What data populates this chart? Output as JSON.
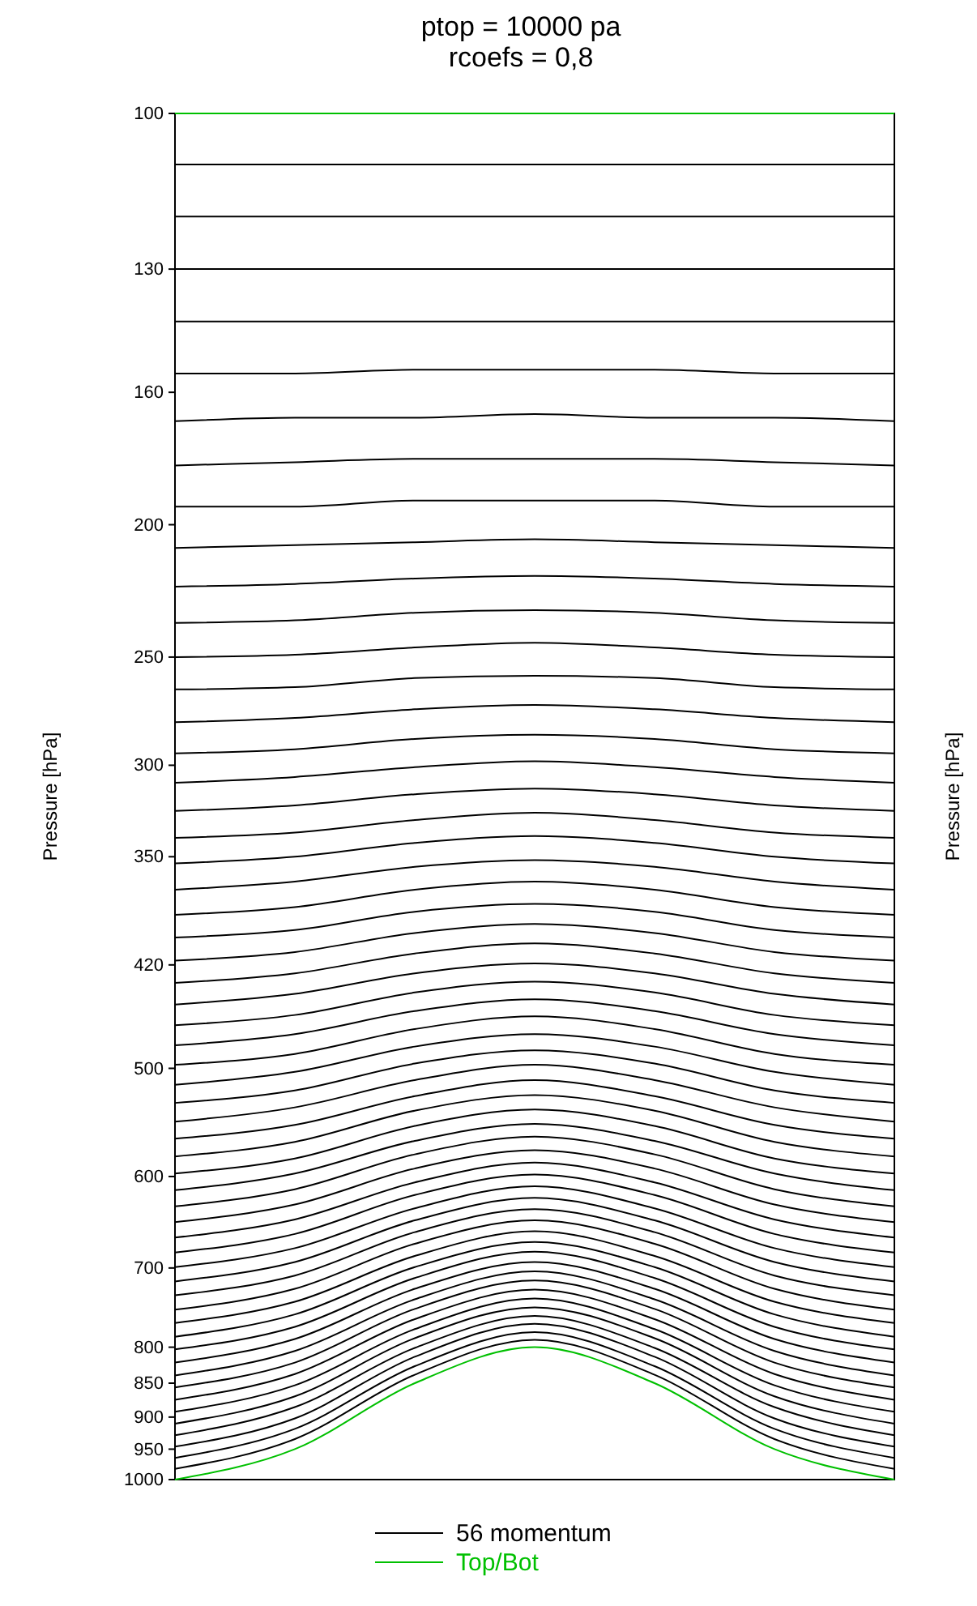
{
  "chart_data": {
    "type": "line",
    "title": "ptop = 10000 pa",
    "subtitle": "rcoefs = 0,8",
    "ylabel": "Pressure [hPa]",
    "y2label": "Pressure [hPa]",
    "categories": [
      null,
      null,
      null,
      null,
      null,
      null,
      null
    ],
    "log": "y",
    "ylim": [
      1000,
      100
    ],
    "yticks": [
      100,
      130,
      160,
      200,
      250,
      300,
      350,
      420,
      500,
      600,
      700,
      800,
      850,
      900,
      950,
      1000
    ],
    "tick_labels": "y",
    "grid": false,
    "legend": "bottom",
    "marker": "none",
    "line_style": "solid",
    "series": [
      {
        "name": "56 momentum",
        "color": "#000000",
        "values": [
          109,
          109,
          109,
          109,
          109,
          109,
          109
        ]
      },
      {
        "color": "#000000",
        "values": [
          119,
          119,
          119,
          119,
          119,
          119,
          119
        ]
      },
      {
        "color": "#000000",
        "values": [
          130,
          130,
          130,
          130,
          130,
          130,
          130
        ]
      },
      {
        "color": "#000000",
        "values": [
          142,
          142,
          142,
          142,
          142,
          142,
          142
        ]
      },
      {
        "color": "#000000",
        "values": [
          155,
          155,
          154,
          154,
          154,
          155,
          155
        ]
      },
      {
        "color": "#000000",
        "values": [
          168,
          167,
          167,
          166,
          167,
          167,
          168
        ]
      },
      {
        "color": "#000000",
        "values": [
          181,
          180,
          179,
          179,
          179,
          180,
          181
        ]
      },
      {
        "color": "#000000",
        "values": [
          194,
          194,
          192,
          192,
          192,
          194,
          194
        ]
      },
      {
        "color": "#000000",
        "values": [
          208,
          207,
          206,
          205,
          206,
          207,
          208
        ]
      },
      {
        "color": "#000000",
        "values": [
          222,
          221,
          219,
          218,
          219,
          221,
          222
        ]
      },
      {
        "color": "#000000",
        "values": [
          236,
          235,
          232,
          231,
          232,
          235,
          236
        ]
      },
      {
        "color": "#000000",
        "values": [
          250,
          249,
          246,
          244,
          246,
          249,
          250
        ]
      },
      {
        "color": "#000000",
        "values": [
          264,
          263,
          259,
          258,
          259,
          263,
          264
        ]
      },
      {
        "color": "#000000",
        "values": [
          279,
          277,
          273,
          271,
          273,
          277,
          279
        ]
      },
      {
        "color": "#000000",
        "values": [
          294,
          292,
          287,
          285,
          287,
          292,
          294
        ]
      },
      {
        "color": "#000000",
        "values": [
          309,
          306,
          301,
          298,
          301,
          306,
          309
        ]
      },
      {
        "color": "#000000",
        "values": [
          324,
          321,
          315,
          312,
          315,
          321,
          324
        ]
      },
      {
        "color": "#000000",
        "values": [
          339,
          336,
          329,
          325,
          329,
          336,
          339
        ]
      },
      {
        "color": "#000000",
        "values": [
          354,
          350,
          342,
          338,
          342,
          350,
          354
        ]
      },
      {
        "color": "#000000",
        "values": [
          370,
          365,
          356,
          352,
          356,
          365,
          370
        ]
      },
      {
        "color": "#000000",
        "values": [
          386,
          381,
          370,
          365,
          370,
          381,
          386
        ]
      },
      {
        "color": "#000000",
        "values": [
          401,
          396,
          384,
          379,
          384,
          396,
          401
        ]
      },
      {
        "color": "#000000",
        "values": [
          417,
          411,
          398,
          392,
          398,
          411,
          417
        ]
      },
      {
        "color": "#000000",
        "values": [
          433,
          426,
          412,
          405,
          412,
          426,
          433
        ]
      },
      {
        "color": "#000000",
        "values": [
          449,
          441,
          426,
          419,
          426,
          441,
          449
        ]
      },
      {
        "color": "#000000",
        "values": [
          465,
          457,
          440,
          432,
          440,
          457,
          465
        ]
      },
      {
        "color": "#000000",
        "values": [
          481,
          472,
          454,
          445,
          454,
          472,
          481
        ]
      },
      {
        "color": "#000000",
        "values": [
          497,
          488,
          468,
          458,
          468,
          488,
          497
        ]
      },
      {
        "color": "#000000",
        "values": [
          514,
          503,
          482,
          472,
          482,
          503,
          514
        ]
      },
      {
        "color": "#000000",
        "values": [
          530,
          519,
          496,
          485,
          496,
          519,
          530
        ]
      },
      {
        "color": "#000000",
        "values": [
          547,
          534,
          510,
          497,
          510,
          534,
          547
        ]
      },
      {
        "color": "#000000",
        "values": [
          563,
          550,
          524,
          510,
          524,
          550,
          563
        ]
      },
      {
        "color": "#000000",
        "values": [
          580,
          566,
          537,
          523,
          537,
          566,
          580
        ]
      },
      {
        "color": "#000000",
        "values": [
          597,
          582,
          551,
          536,
          551,
          582,
          597
        ]
      },
      {
        "color": "#000000",
        "values": [
          614,
          597,
          565,
          549,
          565,
          597,
          614
        ]
      },
      {
        "color": "#000000",
        "values": [
          631,
          613,
          578,
          561,
          578,
          613,
          631
        ]
      },
      {
        "color": "#000000",
        "values": [
          648,
          629,
          592,
          574,
          592,
          629,
          648
        ]
      },
      {
        "color": "#000000",
        "values": [
          665,
          645,
          606,
          586,
          606,
          645,
          665
        ]
      },
      {
        "color": "#000000",
        "values": [
          682,
          661,
          619,
          598,
          619,
          661,
          682
        ]
      },
      {
        "color": "#000000",
        "values": [
          699,
          677,
          633,
          610,
          633,
          677,
          699
        ]
      },
      {
        "color": "#000000",
        "values": [
          716,
          693,
          646,
          622,
          646,
          693,
          716
        ]
      },
      {
        "color": "#000000",
        "values": [
          733,
          709,
          659,
          634,
          659,
          709,
          733
        ]
      },
      {
        "color": "#000000",
        "values": [
          751,
          725,
          672,
          646,
          672,
          725,
          751
        ]
      },
      {
        "color": "#000000",
        "values": [
          768,
          741,
          686,
          658,
          686,
          741,
          768
        ]
      },
      {
        "color": "#000000",
        "values": [
          786,
          757,
          699,
          670,
          699,
          757,
          786
        ]
      },
      {
        "color": "#000000",
        "values": [
          803,
          773,
          712,
          681,
          712,
          773,
          803
        ]
      },
      {
        "color": "#000000",
        "values": [
          821,
          789,
          725,
          693,
          725,
          789,
          821
        ]
      },
      {
        "color": "#000000",
        "values": [
          839,
          805,
          738,
          704,
          738,
          805,
          839
        ]
      },
      {
        "color": "#000000",
        "values": [
          856,
          821,
          750,
          715,
          750,
          821,
          856
        ]
      },
      {
        "color": "#000000",
        "values": [
          874,
          837,
          763,
          726,
          763,
          837,
          874
        ]
      },
      {
        "color": "#000000",
        "values": [
          892,
          853,
          776,
          737,
          776,
          853,
          892
        ]
      },
      {
        "color": "#000000",
        "values": [
          910,
          869,
          788,
          748,
          788,
          869,
          910
        ]
      },
      {
        "color": "#000000",
        "values": [
          928,
          885,
          801,
          759,
          801,
          885,
          928
        ]
      },
      {
        "color": "#000000",
        "values": [
          946,
          902,
          813,
          769,
          813,
          902,
          946
        ]
      },
      {
        "color": "#000000",
        "values": [
          964,
          918,
          826,
          780,
          826,
          918,
          964
        ]
      },
      {
        "color": "#000000",
        "values": [
          982,
          934,
          838,
          790,
          838,
          934,
          982
        ]
      },
      {
        "name": "Top/Bot",
        "color": "#00c000",
        "values": [
          100,
          100,
          100,
          100,
          100,
          100,
          100
        ]
      },
      {
        "color": "#00c000",
        "values": [
          1000,
          950,
          850,
          800,
          850,
          950,
          1000
        ]
      }
    ]
  }
}
